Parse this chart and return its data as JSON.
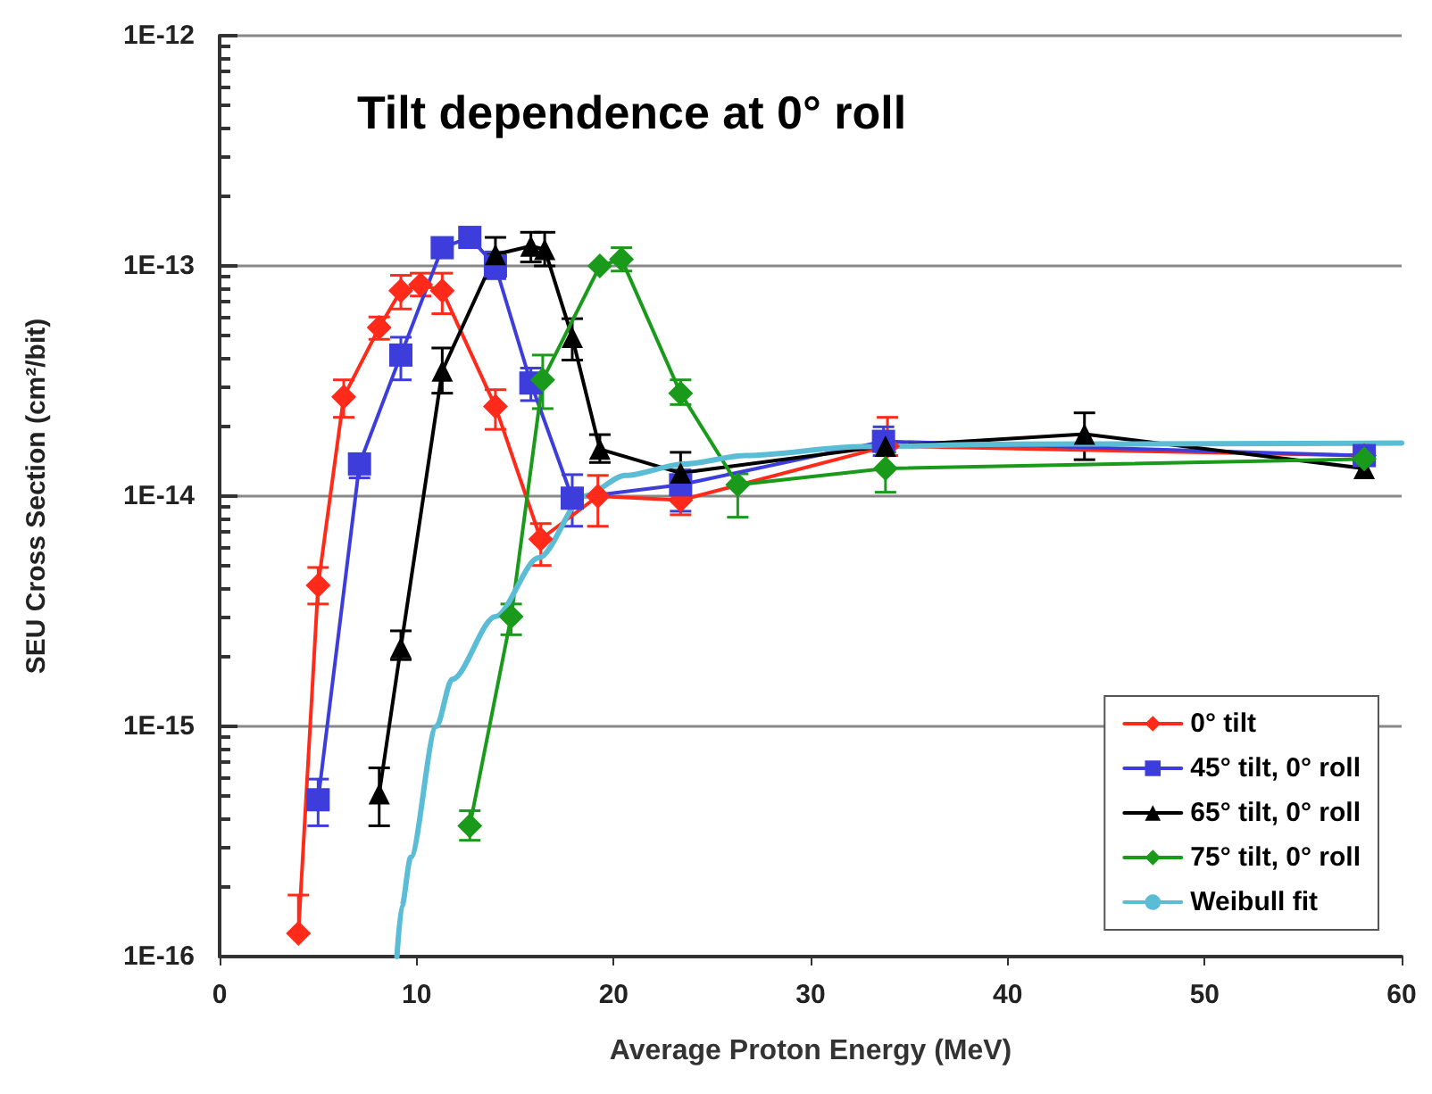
{
  "chart_data": {
    "type": "line",
    "title": "Tilt dependence at 0° roll",
    "xlabel": "Average Proton Energy (MeV)",
    "ylabel": "SEU Cross Section (cm²/bit)",
    "log": "y",
    "grid": "y",
    "legend": "bottom right",
    "xlim": [
      0,
      60
    ],
    "xticks": [
      0,
      10,
      20,
      30,
      40,
      50,
      60
    ],
    "ylim": [
      1e-16,
      1e-12
    ],
    "yticks": [
      {
        "value": 1e-16,
        "label": "1E-16"
      },
      {
        "value": 1e-15,
        "label": "1E-15"
      },
      {
        "value": 1e-14,
        "label": "1E-14"
      },
      {
        "value": 1e-13,
        "label": "1E-13"
      },
      {
        "value": 1e-12,
        "label": "1E-12"
      }
    ],
    "series": [
      {
        "name": "0° tilt",
        "color": "#ff2a1a",
        "marker": "diamond",
        "x": [
          4.0,
          5.0,
          6.3,
          8.1,
          9.2,
          10.2,
          11.3,
          14.0,
          16.3,
          19.2,
          23.4,
          33.9,
          58.1
        ],
        "values": [
          1.26e-16,
          4.1e-15,
          2.7e-14,
          5.4e-14,
          7.8e-14,
          8.3e-14,
          7.8e-14,
          2.45e-14,
          6.5e-15,
          1e-14,
          9.6e-15,
          1.65e-14,
          1.5e-14
        ],
        "errors": [
          [
            1.26e-16,
            1.85e-16
          ],
          [
            3.4e-15,
            4.9e-15
          ],
          [
            2.2e-14,
            3.2e-14
          ],
          [
            4.8e-14,
            6e-14
          ],
          [
            6.5e-14,
            9.1e-14
          ],
          [
            7.4e-14,
            9.3e-14
          ],
          [
            6.2e-14,
            9.3e-14
          ],
          [
            1.95e-14,
            2.9e-14
          ],
          [
            5e-15,
            7.6e-15
          ],
          [
            7.4e-15,
            1.23e-14
          ],
          [
            8.3e-15,
            1.05e-14
          ],
          [
            1.5e-14,
            2.2e-14
          ],
          null
        ]
      },
      {
        "name": "45° tilt, 0° roll",
        "color": "#3d3ddc",
        "marker": "square",
        "x": [
          5.0,
          7.1,
          9.2,
          11.3,
          12.7,
          14.0,
          15.8,
          17.9,
          23.4,
          33.7,
          58.1
        ],
        "values": [
          4.8e-16,
          1.38e-14,
          4.1e-14,
          1.2e-13,
          1.33e-13,
          1e-13,
          3.1e-14,
          9.8e-15,
          1.12e-14,
          1.73e-14,
          1.5e-14
        ],
        "errors": [
          [
            3.7e-16,
            5.9e-16
          ],
          [
            1.2e-14,
            1.5e-14
          ],
          [
            3.2e-14,
            4.9e-14
          ],
          null,
          null,
          [
            8.8e-14,
            1.15e-13
          ],
          [
            2.6e-14,
            3.6e-14
          ],
          [
            7.4e-15,
            1.24e-14
          ],
          [
            8.6e-15,
            1.3e-14
          ],
          [
            1.5e-14,
            2e-14
          ],
          null
        ]
      },
      {
        "name": "65° tilt, 0° roll",
        "color": "#000000",
        "marker": "triangle",
        "x": [
          8.1,
          9.2,
          11.3,
          14.0,
          15.8,
          16.5,
          17.9,
          19.3,
          23.4,
          33.8,
          43.9,
          58.1
        ],
        "values": [
          5.1e-16,
          2.2e-15,
          3.5e-14,
          1.12e-13,
          1.22e-13,
          1.18e-13,
          4.9e-14,
          1.6e-14,
          1.26e-14,
          1.65e-14,
          1.86e-14,
          1.32e-14
        ],
        "errors": [
          [
            3.7e-16,
            6.6e-16
          ],
          [
            1.95e-15,
            2.6e-15
          ],
          [
            2.8e-14,
            4.4e-14
          ],
          [
            1.12e-13,
            1.33e-13
          ],
          [
            1.04e-13,
            1.4e-13
          ],
          [
            1e-13,
            1.4e-13
          ],
          [
            3.9e-14,
            5.9e-14
          ],
          [
            1.4e-14,
            1.85e-14
          ],
          [
            1.1e-14,
            1.55e-14
          ],
          null,
          [
            1.44e-14,
            2.3e-14
          ],
          null
        ]
      },
      {
        "name": "75° tilt, 0° roll",
        "color": "#1a9a1a",
        "marker": "diamond",
        "x": [
          12.7,
          14.8,
          16.4,
          19.3,
          20.4,
          23.4,
          26.3,
          33.8,
          58.1
        ],
        "values": [
          3.7e-16,
          3e-15,
          3.2e-14,
          1e-13,
          1.07e-13,
          2.8e-14,
          1.12e-14,
          1.32e-14,
          1.45e-14
        ],
        "errors": [
          [
            3.2e-16,
            4.3e-16
          ],
          [
            2.5e-15,
            3.4e-15
          ],
          [
            2.4e-14,
            4.1e-14
          ],
          null,
          [
            9.5e-14,
            1.2e-13
          ],
          [
            2.5e-14,
            3.2e-14
          ],
          [
            8.1e-15,
            1.25e-14
          ],
          [
            1.04e-14,
            1.55e-14
          ],
          null
        ]
      },
      {
        "name": "Weibull fit",
        "color": "#5bbcd6",
        "marker": "none",
        "x": [
          9.0,
          9.25,
          9.7,
          11.0,
          11.8,
          14.0,
          16.2,
          18.5,
          20.6,
          23.6,
          26.7,
          32.6,
          40,
          50,
          60
        ],
        "values": [
          1e-16,
          1.66e-16,
          2.7e-16,
          1e-15,
          1.6e-15,
          3e-15,
          5.4e-15,
          1e-14,
          1.23e-14,
          1.38e-14,
          1.5e-14,
          1.64e-14,
          1.68e-14,
          1.69e-14,
          1.7e-14
        ]
      }
    ]
  }
}
